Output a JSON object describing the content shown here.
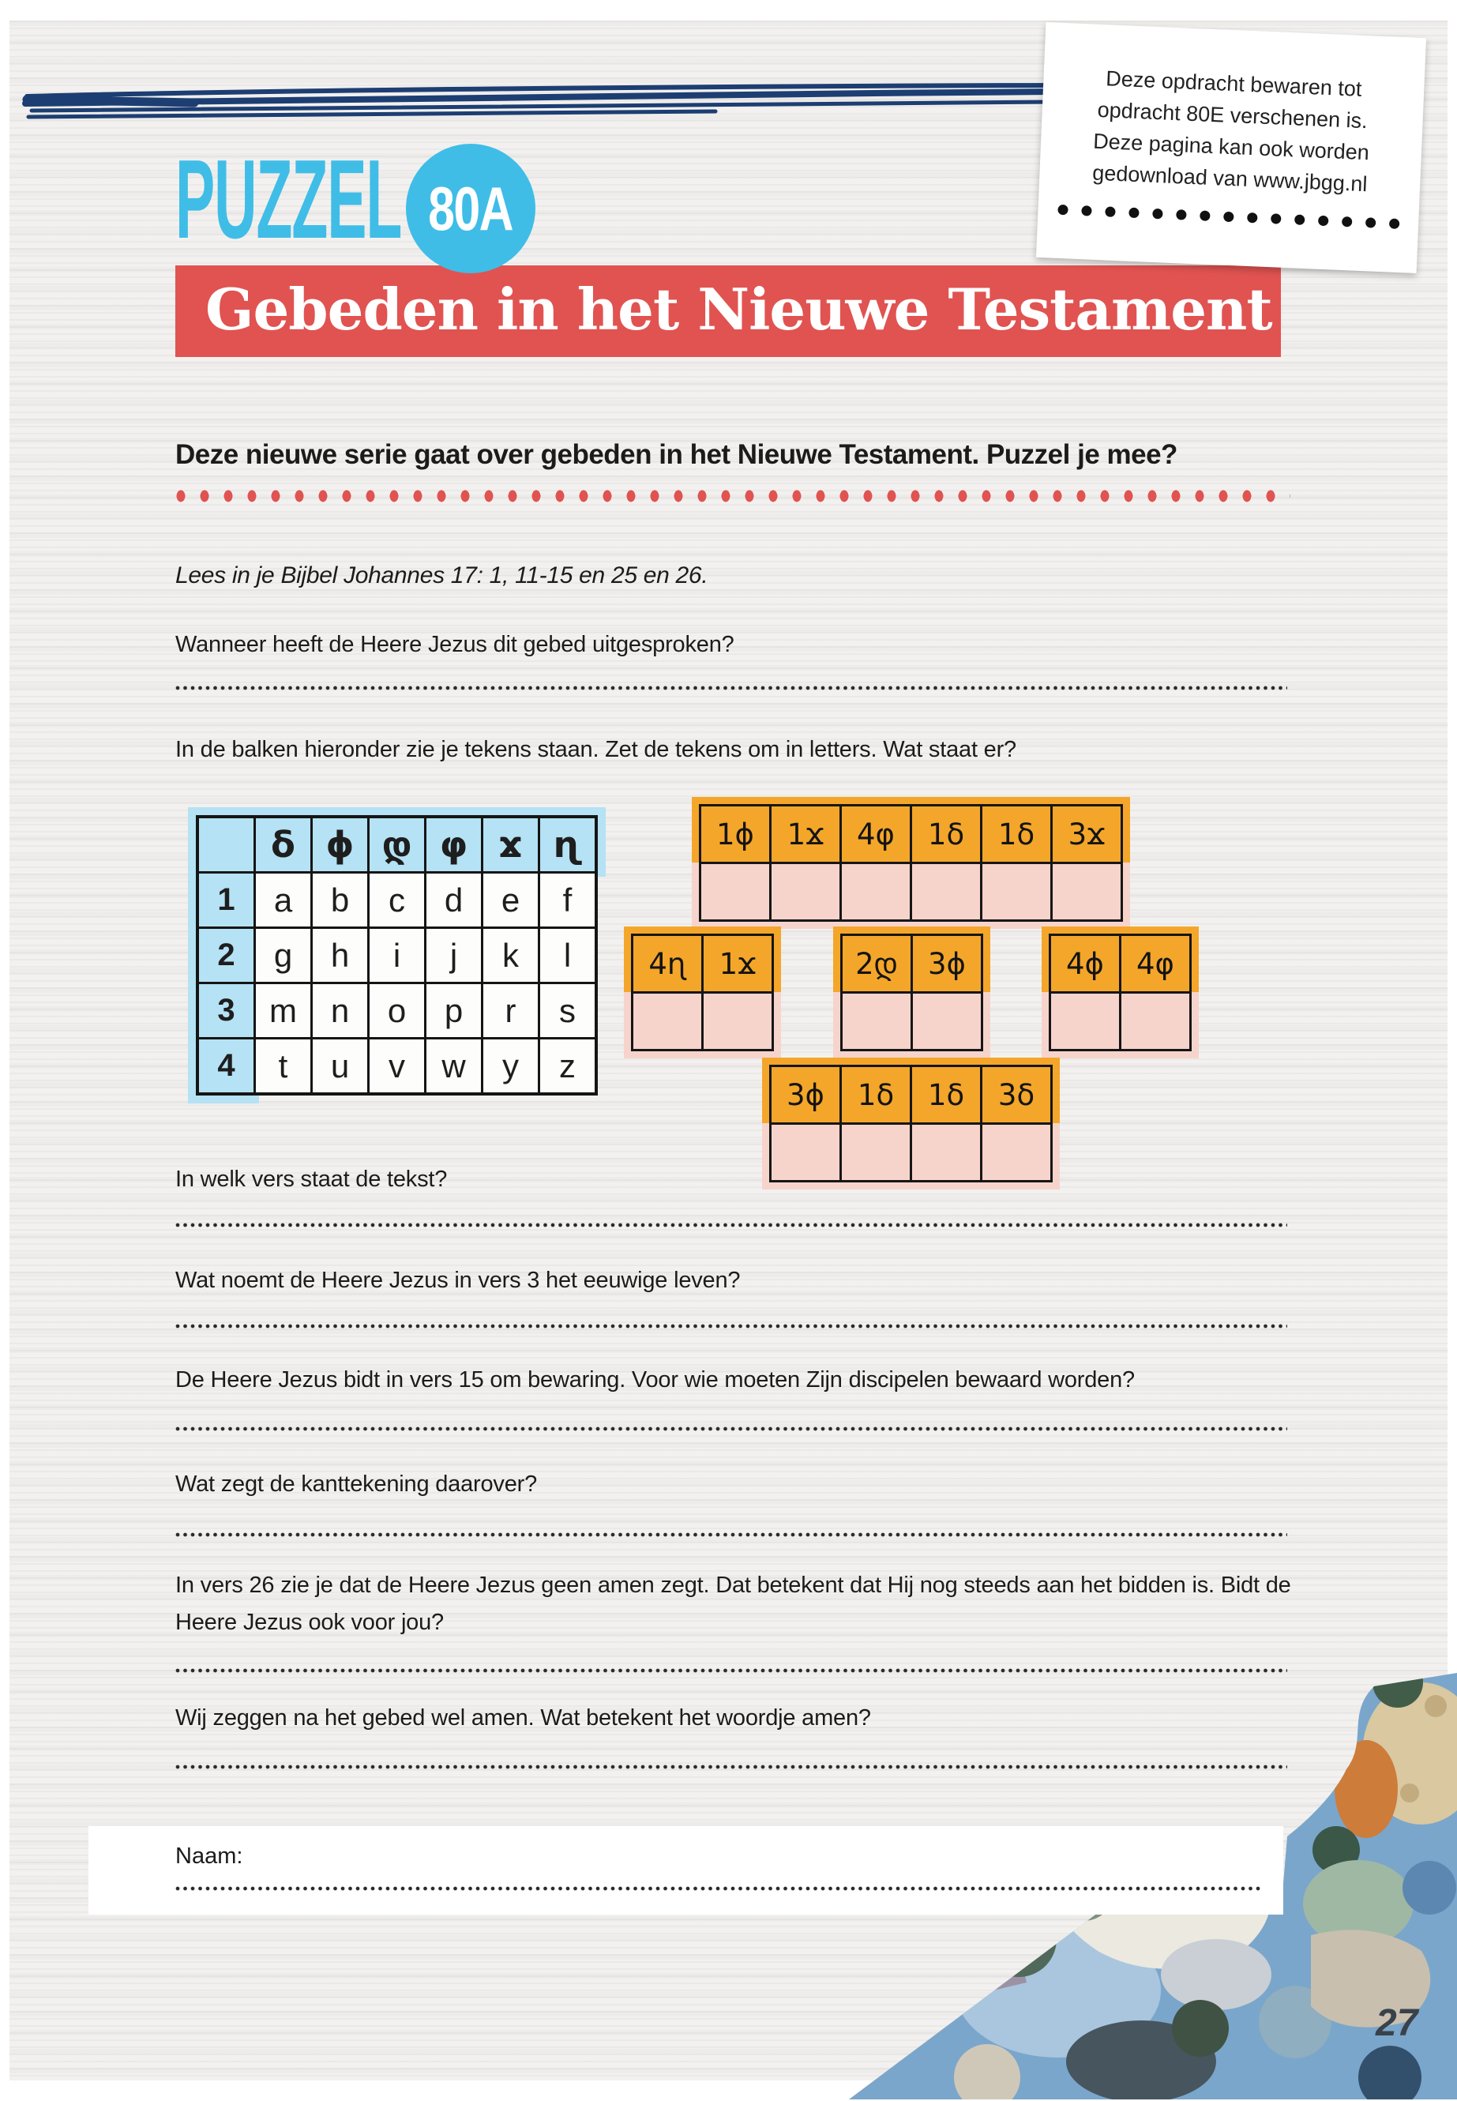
{
  "note": {
    "lines": [
      "Deze opdracht bewaren tot",
      "opdracht 80E verschenen is.",
      "Deze pagina kan ook worden",
      "gedownload van www.jbgg.nl"
    ],
    "dots_count": 15
  },
  "logo": {
    "title": "PUZZEL",
    "badge": "80A"
  },
  "banner": {
    "title": "Gebeden in het Nieuwe Testament"
  },
  "intro": {
    "text": "Deze nieuwe serie gaat over gebeden in het Nieuwe Testament. Puzzel je mee?"
  },
  "instructions": {
    "read": "Lees in je Bijbel Johannes 17: 1, 11-15 en 25 en 26.",
    "q_when": "Wanneer heeft de Heere Jezus dit gebed uitgesproken?",
    "q_decode": "In de balken hieronder zie je tekens staan. Zet de tekens om in letters. Wat staat er?"
  },
  "cipher_table": {
    "symbols": [
      "δ",
      "ϕ",
      "დ",
      "φ",
      "ϫ",
      "ɳ"
    ],
    "rows": [
      {
        "num": "1",
        "letters": [
          "a",
          "b",
          "c",
          "d",
          "e",
          "f"
        ]
      },
      {
        "num": "2",
        "letters": [
          "g",
          "h",
          "i",
          "j",
          "k",
          "l"
        ]
      },
      {
        "num": "3",
        "letters": [
          "m",
          "n",
          "o",
          "p",
          "r",
          "s"
        ]
      },
      {
        "num": "4",
        "letters": [
          "t",
          "u",
          "v",
          "w",
          "y",
          "z"
        ]
      }
    ]
  },
  "answer_bars": [
    {
      "codes": [
        "1ϕ",
        "1ϫ",
        "4φ",
        "1δ",
        "1δ",
        "3ϫ"
      ]
    },
    {
      "codes": [
        "4ɳ",
        "1ϫ"
      ]
    },
    {
      "codes": [
        "2დ",
        "3ϕ"
      ]
    },
    {
      "codes": [
        "4ϕ",
        "4φ"
      ]
    },
    {
      "codes": [
        "3ϕ",
        "1δ",
        "1δ",
        "3δ"
      ]
    }
  ],
  "questions": [
    {
      "text": "In welk vers staat de tekst?"
    },
    {
      "text": "Wat noemt de Heere Jezus in vers 3 het eeuwige leven?"
    },
    {
      "text": "De Heere Jezus bidt in vers 15 om bewaring. Voor wie moeten Zijn discipelen bewaard worden?"
    },
    {
      "text": "Wat zegt de kanttekening daarover?"
    },
    {
      "text": "In vers 26 zie je dat de Heere Jezus geen amen zegt. Dat betekent dat Hij nog steeds aan het bidden is. Bidt de Heere Jezus ook voor jou?"
    },
    {
      "text": "Wij zeggen na het gebed wel amen. Wat betekent het woordje amen?"
    }
  ],
  "name_label": "Naam:",
  "page_number": "27",
  "colors": {
    "accent_blue": "#3fbde7",
    "banner_red": "#e05351",
    "table_blue": "#b5e2f4",
    "bar_orange": "#f4a62a",
    "bar_pink": "#f6d4cc",
    "scribble_navy": "#1d3e72"
  }
}
